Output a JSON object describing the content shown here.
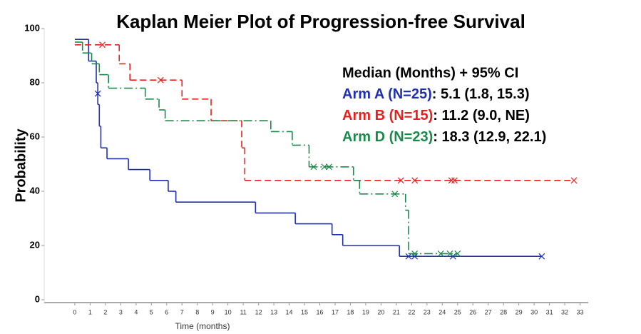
{
  "chart_data": {
    "type": "kaplan-meier",
    "title": "Kaplan Meier Plot of Progression-free Survival",
    "x_label": "Time (months)",
    "y_label": "Probability",
    "xlim": [
      -2,
      34
    ],
    "ylim": [
      0,
      100
    ],
    "xticks": [
      0,
      1,
      2,
      3,
      4,
      5,
      6,
      7,
      8,
      9,
      10,
      11,
      12,
      13,
      14,
      15,
      16,
      17,
      18,
      19,
      20,
      21,
      22,
      23,
      24,
      25,
      26,
      27,
      28,
      29,
      30,
      31,
      32,
      33
    ],
    "yticks": [
      0,
      20,
      40,
      60,
      80,
      100
    ],
    "legend_title": "Median (Months) + 95% CI",
    "series": [
      {
        "name": "Arm A (N=25)",
        "median_ci": ": 5.1 (1.8, 15.3)",
        "color": "#1f2fb0",
        "dash": "solid",
        "x": [
          0,
          0.9,
          1.4,
          1.5,
          1.6,
          1.7,
          2.1,
          3.5,
          4.9,
          6.1,
          6.6,
          11.8,
          14.4,
          16.8,
          17.5,
          21.2,
          30.5
        ],
        "values": [
          96,
          88,
          80,
          72,
          64,
          56,
          52,
          48,
          44,
          40,
          36,
          32,
          28,
          24,
          20,
          16,
          16
        ],
        "censored_x": [
          1.5,
          21.8,
          22.2,
          24.7,
          30.5
        ],
        "censored_values": [
          76,
          16,
          16,
          16,
          16
        ]
      },
      {
        "name": "Arm B (N=15)",
        "median_ci": ": 11.2 (9.0, NE)",
        "color": "#e8201c",
        "dash": "dashed",
        "x": [
          0,
          2.9,
          3.6,
          7.0,
          8.9,
          10.9,
          11.1,
          32.6
        ],
        "values": [
          94,
          87,
          81,
          74,
          66,
          56,
          44,
          44
        ],
        "censored_x": [
          1.8,
          5.6,
          21.3,
          22.2,
          24.6,
          24.8,
          32.6
        ],
        "censored_values": [
          94,
          81,
          44,
          44,
          44,
          44,
          44
        ]
      },
      {
        "name": "Arm D (N=23)",
        "median_ci": ": 18.3 (12.9, 22.1)",
        "color": "#1a8a4a",
        "dash": "dashdot",
        "x": [
          0,
          0.5,
          1.1,
          1.6,
          2.2,
          4.6,
          5.5,
          5.9,
          12.8,
          14.2,
          15.3,
          18.2,
          18.6,
          21.6,
          21.8,
          25.0
        ],
        "values": [
          95,
          91,
          87,
          83,
          78,
          74,
          70,
          66,
          62,
          57,
          49,
          44,
          39,
          33,
          17,
          17
        ],
        "censored_x": [
          15.6,
          16.3,
          16.6,
          20.9,
          22.2,
          23.9,
          24.5,
          25.0
        ],
        "censored_values": [
          49,
          49,
          49,
          39,
          17,
          17,
          17,
          17
        ]
      }
    ]
  }
}
